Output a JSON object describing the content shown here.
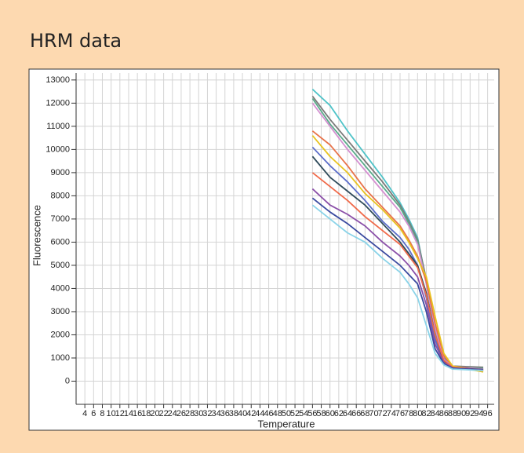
{
  "chart_data": {
    "type": "line",
    "title": "HRM data",
    "x_label": "Temperature",
    "y_label": "Fluorescence",
    "x": [
      56,
      60,
      64,
      68,
      72,
      76,
      78,
      80,
      82,
      84,
      86,
      88,
      95
    ],
    "series": [
      {
        "color": "#4fc3c8",
        "values": [
          12600,
          11900,
          10800,
          9800,
          8800,
          7700,
          7000,
          6200,
          4300,
          2200,
          900,
          600,
          550
        ]
      },
      {
        "color": "#7a7a7a",
        "values": [
          12300,
          11300,
          10400,
          9500,
          8600,
          7600,
          6900,
          6100,
          4400,
          2400,
          1000,
          650,
          600
        ]
      },
      {
        "color": "#5aaa8a",
        "values": [
          12200,
          11100,
          10200,
          9300,
          8400,
          7500,
          6800,
          6000,
          4200,
          2200,
          900,
          600,
          550
        ]
      },
      {
        "color": "#d48fd0",
        "values": [
          12000,
          11000,
          10000,
          9100,
          8200,
          7300,
          6700,
          5900,
          4200,
          2300,
          950,
          620,
          520
        ]
      },
      {
        "color": "#e8734a",
        "values": [
          10800,
          10200,
          9300,
          8300,
          7500,
          6700,
          6100,
          5400,
          4300,
          2500,
          1100,
          650,
          450
        ]
      },
      {
        "color": "#e8c21f",
        "values": [
          10600,
          9700,
          9000,
          8100,
          7400,
          6600,
          6000,
          5300,
          4500,
          2800,
          1200,
          650,
          400
        ]
      },
      {
        "color": "#5b6dc9",
        "values": [
          10100,
          9300,
          8600,
          7800,
          6900,
          6200,
          5700,
          5000,
          3600,
          1800,
          800,
          560,
          500
        ]
      },
      {
        "color": "#2e4a5a",
        "values": [
          9700,
          8800,
          8200,
          7600,
          6800,
          6000,
          5500,
          5000,
          3800,
          2000,
          850,
          580,
          500
        ]
      },
      {
        "color": "#f06a4a",
        "values": [
          9000,
          8400,
          7800,
          7100,
          6500,
          5900,
          5400,
          4900,
          3700,
          2000,
          900,
          600,
          450
        ]
      },
      {
        "color": "#8a4fa8",
        "values": [
          8300,
          7600,
          7200,
          6700,
          6000,
          5400,
          5000,
          4500,
          3300,
          1600,
          800,
          570,
          480
        ]
      },
      {
        "color": "#3a4aa0",
        "values": [
          7900,
          7300,
          6800,
          6200,
          5600,
          5000,
          4600,
          4200,
          3000,
          1400,
          750,
          560,
          470
        ]
      },
      {
        "color": "#8ad3e8",
        "values": [
          7600,
          7000,
          6400,
          6000,
          5300,
          4700,
          4200,
          3600,
          2400,
          1200,
          700,
          520,
          460
        ]
      }
    ],
    "xlim": [
      2,
      97.5
    ],
    "ylim": [
      -1000,
      13300
    ],
    "xticks": [
      4,
      6,
      8,
      10,
      12,
      14,
      16,
      18,
      20,
      22,
      24,
      26,
      28,
      30,
      32,
      34,
      36,
      38,
      40,
      42,
      44,
      46,
      48,
      50,
      52,
      54,
      56,
      58,
      60,
      62,
      64,
      66,
      68,
      70,
      72,
      74,
      76,
      78,
      80,
      82,
      84,
      86,
      88,
      90,
      92,
      94,
      96
    ],
    "yticks": [
      0,
      1000,
      2000,
      3000,
      4000,
      5000,
      6000,
      7000,
      8000,
      9000,
      10000,
      11000,
      12000,
      13000
    ],
    "grid": true
  }
}
